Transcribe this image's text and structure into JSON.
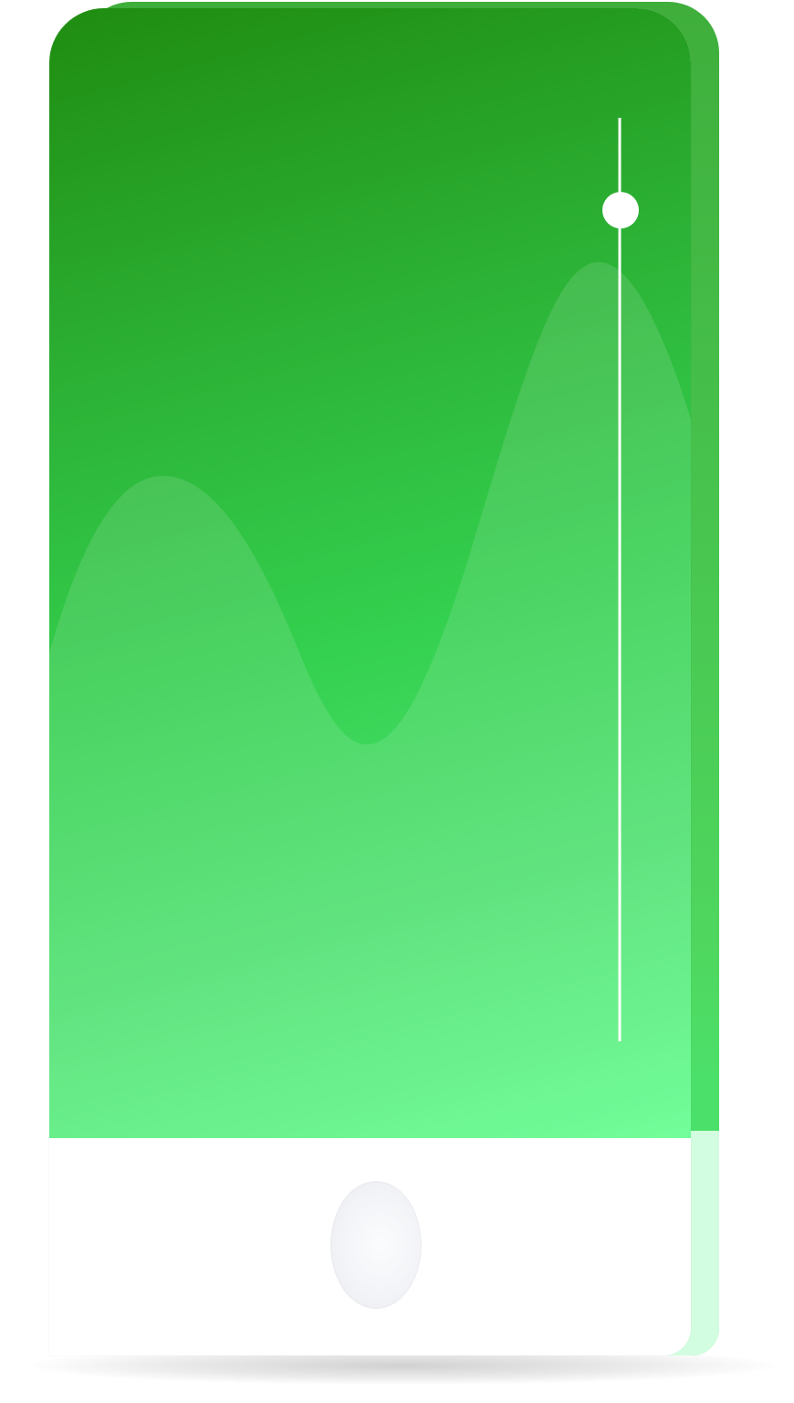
{
  "colors": {
    "screen_top": "#1f8c10",
    "screen_bottom": "#5ffe8c",
    "wave_fill": "rgba(255,255,255,0.12)",
    "slider": "#ffffff",
    "device_body": "#ffffff",
    "device_back_bottom": "#d3fde0"
  },
  "slider": {
    "orientation": "vertical",
    "value": 0.9
  },
  "icons": {
    "home_button": "home-button-icon"
  }
}
